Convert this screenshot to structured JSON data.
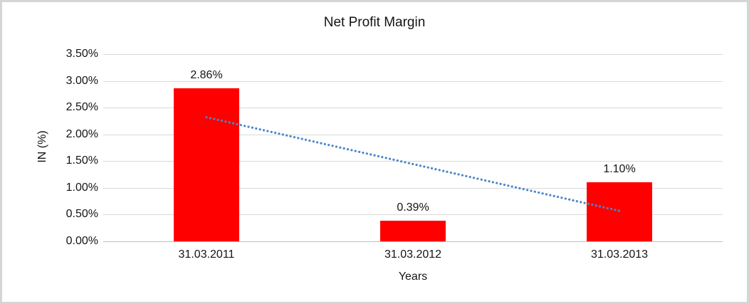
{
  "chart_data": {
    "type": "bar",
    "title": "Net Profit Margin",
    "xlabel": "Years",
    "ylabel": "IN (%)",
    "categories": [
      "31.03.2011",
      "31.03.2012",
      "31.03.2013"
    ],
    "values": [
      2.86,
      0.39,
      1.1
    ],
    "data_labels": [
      "2.86%",
      "0.39%",
      "1.10%"
    ],
    "ylim": [
      0,
      3.5
    ],
    "ytick_step": 0.5,
    "yticks": [
      {
        "value": 0.0,
        "label": "0.00%"
      },
      {
        "value": 0.5,
        "label": "0.50%"
      },
      {
        "value": 1.0,
        "label": "1.00%"
      },
      {
        "value": 1.5,
        "label": "1.50%"
      },
      {
        "value": 2.0,
        "label": "2.00%"
      },
      {
        "value": 2.5,
        "label": "2.50%"
      },
      {
        "value": 3.0,
        "label": "3.00%"
      },
      {
        "value": 3.5,
        "label": "3.50%"
      }
    ],
    "gridlines": true,
    "legend": false,
    "bar_color": "#ff0000",
    "gridline_color": "#d9d9d9",
    "axis_line_color": "#bfbfbf",
    "trendline": {
      "type": "linear",
      "style": "dotted",
      "color": "#4a86c8",
      "start_value": 2.32,
      "end_value": 0.57
    }
  }
}
